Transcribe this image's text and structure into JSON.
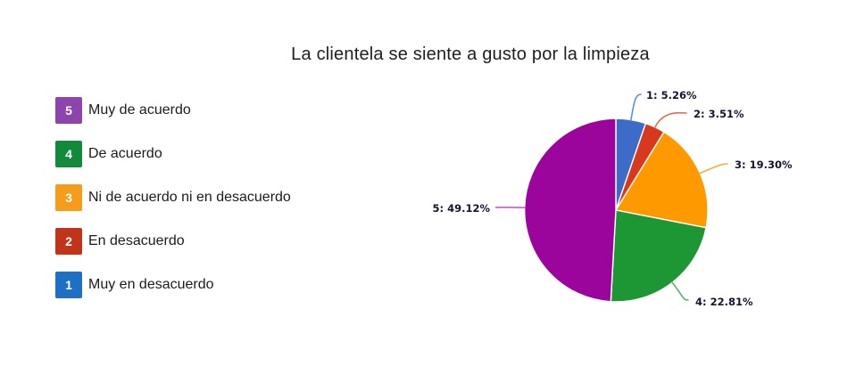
{
  "title": "La clientela se siente a gusto por la limpieza",
  "legend": {
    "items": [
      {
        "key": "5",
        "label": "Muy de acuerdo",
        "color": "#8e44ad"
      },
      {
        "key": "4",
        "label": "De acuerdo",
        "color": "#13893c"
      },
      {
        "key": "3",
        "label": "Ni de acuerdo ni en desacuerdo",
        "color": "#f59c1c"
      },
      {
        "key": "2",
        "label": "En desacuerdo",
        "color": "#c0341a"
      },
      {
        "key": "1",
        "label": "Muy en desacuerdo",
        "color": "#1d70c4"
      }
    ]
  },
  "chart_data": {
    "type": "pie",
    "title": "La clientela se siente a gusto por la limpieza",
    "start_angle_deg": 0,
    "direction": "clockwise",
    "legend_position": "left",
    "slices": [
      {
        "id": "1",
        "label": "Muy en desacuerdo",
        "value_pct": 5.26,
        "color": "#3c6cc8",
        "leader_color": "#6190dd",
        "data_label": "1: 5.26%"
      },
      {
        "id": "2",
        "label": "En desacuerdo",
        "value_pct": 3.51,
        "color": "#d8391c",
        "leader_color": "#e56a52",
        "data_label": "2: 3.51%"
      },
      {
        "id": "3",
        "label": "Ni de acuerdo ni en desacuerdo",
        "value_pct": 19.3,
        "color": "#ff9900",
        "leader_color": "#ffab33",
        "data_label": "3: 19.30%"
      },
      {
        "id": "4",
        "label": "De acuerdo",
        "value_pct": 22.81,
        "color": "#1d9733",
        "leader_color": "#5cb26c",
        "data_label": "4: 22.81%"
      },
      {
        "id": "5",
        "label": "Muy de acuerdo",
        "value_pct": 49.12,
        "color": "#9c059c",
        "leader_color": "#c45ec4",
        "data_label": "5: 49.12%"
      }
    ]
  }
}
